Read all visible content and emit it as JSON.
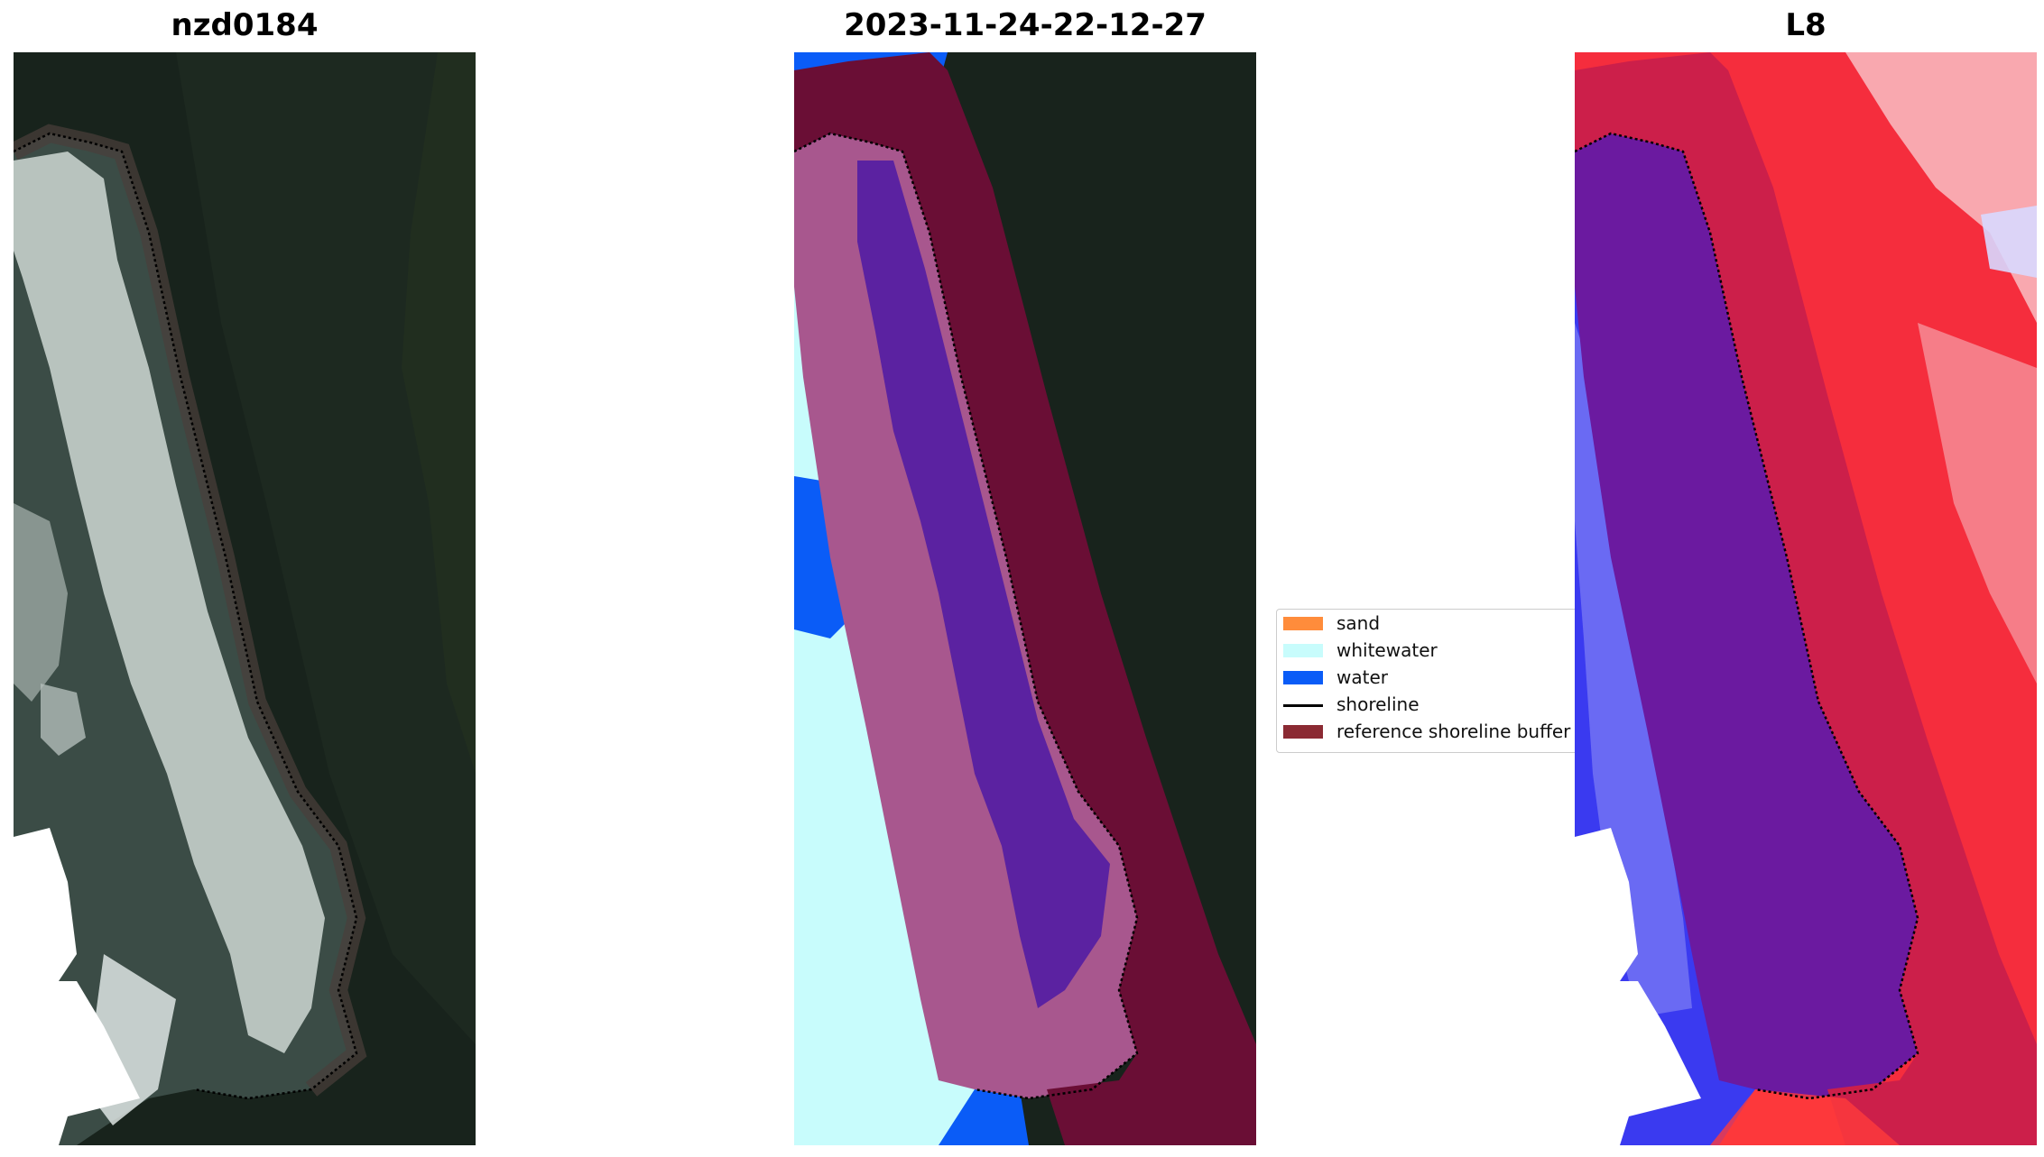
{
  "panels": [
    {
      "title": "nzd0184"
    },
    {
      "title": "2023-11-24-22-12-27"
    },
    {
      "title": "L8"
    }
  ],
  "legend": {
    "items": [
      {
        "label": "sand",
        "color": "#ff8c3b"
      },
      {
        "label": "whitewater",
        "color": "#c8fcfc"
      },
      {
        "label": "water",
        "color": "#0a5cf7"
      },
      {
        "label": "shoreline",
        "color": "#000000"
      },
      {
        "label": "reference shoreline buffer",
        "color": "#8b2a33"
      }
    ]
  },
  "colors": {
    "land": "#18231c",
    "land_light": "#2a3127",
    "ocean": "#3d4f48",
    "foam": "#cfd8d4",
    "classified_sand": "#a8578e",
    "classified_purple": "#5b22a1",
    "classified_buffer": "#6a0e35",
    "index_red": "#f52d3d",
    "index_blue": "#3a3af0",
    "index_pink": "#cc1f4a",
    "index_purple": "#6b1aa0"
  }
}
